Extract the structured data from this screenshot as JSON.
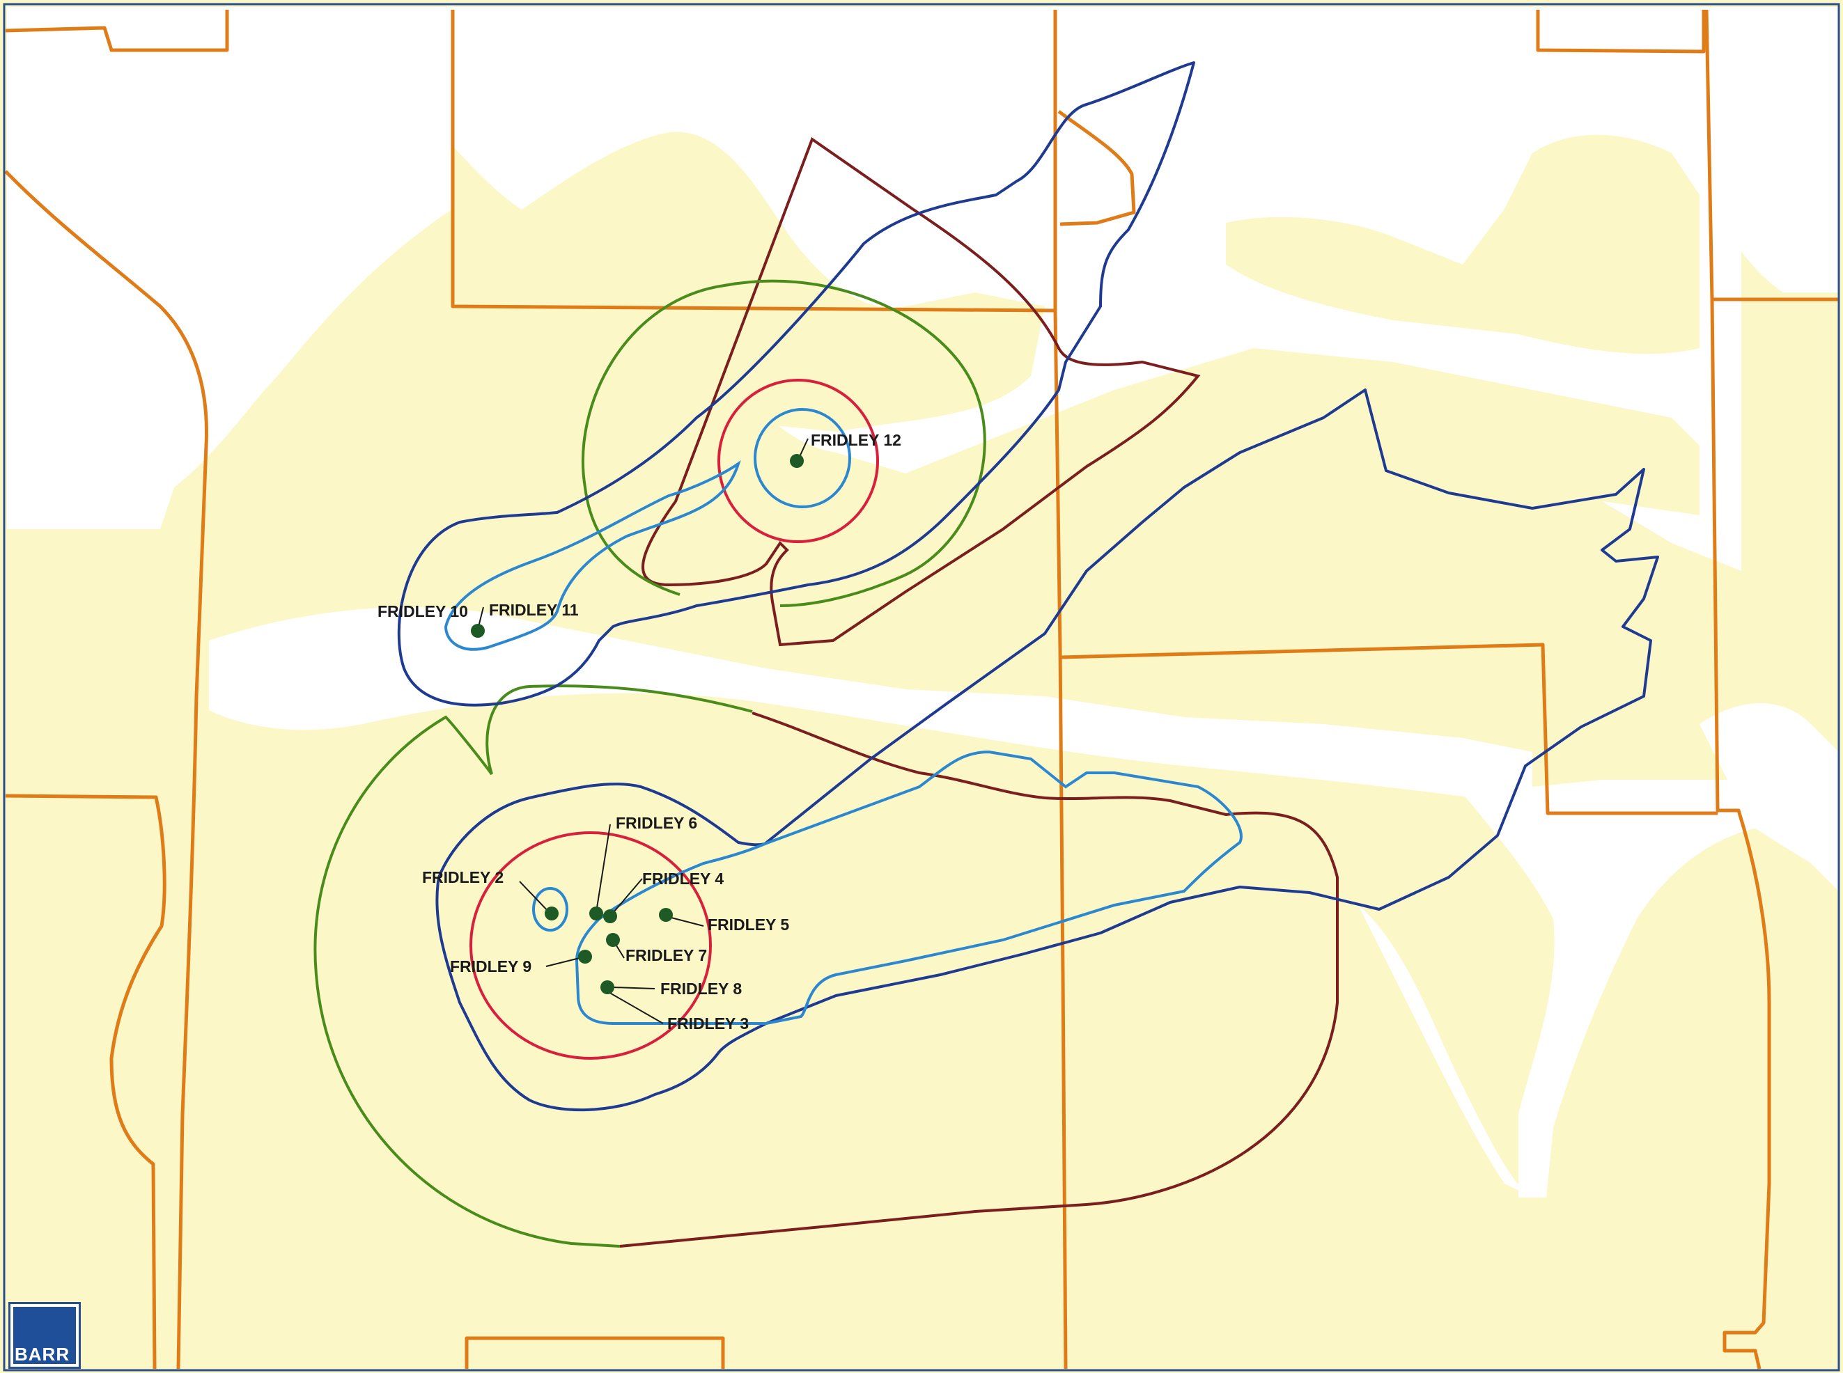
{
  "logo": {
    "text": "BARR"
  },
  "wells": [
    {
      "id": "fridley-12",
      "label": "FRIDLEY 12"
    },
    {
      "id": "fridley-10",
      "label": "FRIDLEY 10"
    },
    {
      "id": "fridley-11",
      "label": "FRIDLEY 11"
    },
    {
      "id": "fridley-6",
      "label": "FRIDLEY 6"
    },
    {
      "id": "fridley-2",
      "label": "FRIDLEY 2"
    },
    {
      "id": "fridley-4",
      "label": "FRIDLEY 4"
    },
    {
      "id": "fridley-5",
      "label": "FRIDLEY 5"
    },
    {
      "id": "fridley-7",
      "label": "FRIDLEY 7"
    },
    {
      "id": "fridley-9",
      "label": "FRIDLEY 9"
    },
    {
      "id": "fridley-8",
      "label": "FRIDLEY 8"
    },
    {
      "id": "fridley-3",
      "label": "FRIDLEY 3"
    }
  ],
  "colors": {
    "background_fill": "#fbf7c6",
    "unfilled": "#ffffff",
    "section_line": "#e07c18",
    "dark_blue": "#1f3b91",
    "light_blue": "#2b88d0",
    "red": "#d8203c",
    "green": "#4a8c1c",
    "maroon": "#7a1e1e",
    "well": "#1d5a26",
    "frame": "#2a4f8e"
  }
}
